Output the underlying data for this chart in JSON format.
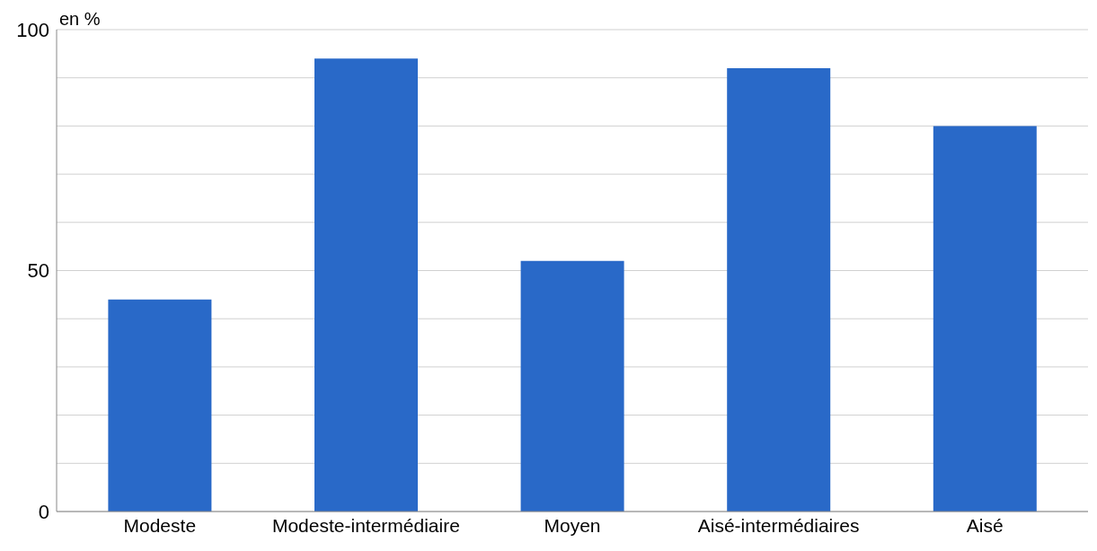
{
  "chart_data": {
    "type": "bar",
    "ylabel": "en %",
    "categories": [
      "Modeste",
      "Modeste-intermédiaire",
      "Moyen",
      "Aisé-intermédiaires",
      "Aisé"
    ],
    "values": [
      44,
      94,
      52,
      92,
      80
    ],
    "color": "#2969c8",
    "ylim": [
      0,
      100
    ],
    "yticks": [
      0,
      {
        "value": 10,
        "label": null
      },
      {
        "value": 20,
        "label": null
      },
      {
        "value": 30,
        "label": null
      },
      {
        "value": 40,
        "label": null
      },
      50,
      {
        "value": 60,
        "label": null
      },
      {
        "value": 70,
        "label": null
      },
      {
        "value": 80,
        "label": null
      },
      {
        "value": 90,
        "label": null
      },
      100
    ],
    "grid": "y"
  }
}
